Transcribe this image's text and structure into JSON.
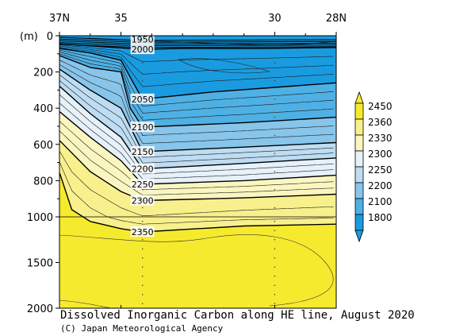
{
  "chart_data": {
    "type": "contour",
    "title": "Dissolved Inorganic Carbon along HE line, August 2020",
    "credit": "(C) Japan Meteorological Agency",
    "ylabel": "(m)",
    "x_ticks": [
      {
        "value": 37,
        "label": "37N"
      },
      {
        "value": 35,
        "label": "35"
      },
      {
        "value": 30,
        "label": "30"
      },
      {
        "value": 28,
        "label": "28N"
      }
    ],
    "x_range": [
      37,
      28
    ],
    "y_ticks": [
      {
        "value": 0,
        "label": "0"
      },
      {
        "value": 200,
        "label": "200"
      },
      {
        "value": 400,
        "label": "400"
      },
      {
        "value": 600,
        "label": "600"
      },
      {
        "value": 800,
        "label": "800"
      },
      {
        "value": 1000,
        "label": "1000"
      },
      {
        "value": 1500,
        "label": "1500"
      },
      {
        "value": 2000,
        "label": "2000"
      }
    ],
    "y_range": [
      0,
      2000
    ],
    "colorbar": {
      "labels": [
        "2450",
        "2360",
        "2330",
        "2300",
        "2250",
        "2200",
        "2100",
        "1800"
      ],
      "colors": [
        "#f6ea2e",
        "#f8f08c",
        "#fbf6c0",
        "#e6f1fa",
        "#bedcf2",
        "#88c5ea",
        "#4fb0e4",
        "#1a9be0"
      ]
    },
    "contour_labels": [
      {
        "value": "1950",
        "depth": 20
      },
      {
        "value": "2000",
        "depth": 75
      },
      {
        "value": "2050",
        "depth": 350
      },
      {
        "value": "2100",
        "depth": 505
      },
      {
        "value": "2150",
        "depth": 640
      },
      {
        "value": "2200",
        "depth": 735
      },
      {
        "value": "2250",
        "depth": 820
      },
      {
        "value": "2300",
        "depth": 910
      },
      {
        "value": "2350",
        "depth": 1165
      }
    ],
    "contour_label_latitude": 34.3,
    "isolines": [
      {
        "value": 2000,
        "points": [
          [
            36.99,
            45
          ],
          [
            34.3,
            75
          ],
          [
            33,
            70
          ],
          [
            30.5,
            70
          ],
          [
            28,
            65
          ]
        ]
      },
      {
        "value": 2050,
        "points": [
          [
            36.99,
            70
          ],
          [
            36,
            95
          ],
          [
            35,
            135
          ],
          [
            34.6,
            260
          ],
          [
            34.3,
            350
          ],
          [
            32,
            310
          ],
          [
            30,
            285
          ],
          [
            28,
            260
          ]
        ]
      },
      {
        "value": 2100,
        "points": [
          [
            36.99,
            110
          ],
          [
            36,
            175
          ],
          [
            35,
            200
          ],
          [
            34.7,
            400
          ],
          [
            34.3,
            505
          ],
          [
            31,
            480
          ],
          [
            28,
            450
          ]
        ]
      },
      {
        "value": 2150,
        "points": [
          [
            36.99,
            185
          ],
          [
            36,
            300
          ],
          [
            35,
            400
          ],
          [
            34.3,
            640
          ],
          [
            31,
            615
          ],
          [
            28,
            590
          ]
        ]
      },
      {
        "value": 2200,
        "points": [
          [
            36.99,
            280
          ],
          [
            36,
            430
          ],
          [
            35,
            560
          ],
          [
            34.3,
            735
          ],
          [
            31,
            705
          ],
          [
            28,
            675
          ]
        ]
      },
      {
        "value": 2250,
        "points": [
          [
            36.99,
            420
          ],
          [
            36,
            560
          ],
          [
            35,
            690
          ],
          [
            34.3,
            820
          ],
          [
            31,
            800
          ],
          [
            28,
            770
          ]
        ]
      },
      {
        "value": 2300,
        "points": [
          [
            36.99,
            580
          ],
          [
            36,
            750
          ],
          [
            35,
            860
          ],
          [
            34.3,
            910
          ],
          [
            31,
            895
          ],
          [
            28,
            875
          ]
        ]
      },
      {
        "value": 2350,
        "points": [
          [
            36.99,
            760
          ],
          [
            36.6,
            960
          ],
          [
            36,
            1050
          ],
          [
            35,
            1130
          ],
          [
            34.3,
            1165
          ],
          [
            31,
            1100
          ],
          [
            28,
            1080
          ]
        ]
      }
    ],
    "grid": false
  }
}
